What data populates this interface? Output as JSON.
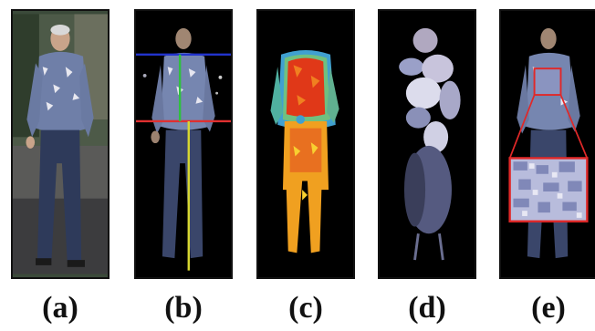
{
  "panels": [
    {
      "id": "a",
      "label": "(a)"
    },
    {
      "id": "b",
      "label": "(b)"
    },
    {
      "id": "c",
      "label": "(c)"
    },
    {
      "id": "d",
      "label": "(d)"
    },
    {
      "id": "e",
      "label": "(e)"
    }
  ],
  "colors": {
    "background": "#000000",
    "horizontal_line_blue": "#2233cc",
    "horizontal_line_red": "#e03030",
    "vertical_line_green": "#30c040",
    "vertical_line_yellow": "#d8d830",
    "zoom_box_red": "#e02828",
    "heat_hot": "#d01a10",
    "heat_warm": "#f0a020",
    "heat_cool": "#40a0d0"
  }
}
